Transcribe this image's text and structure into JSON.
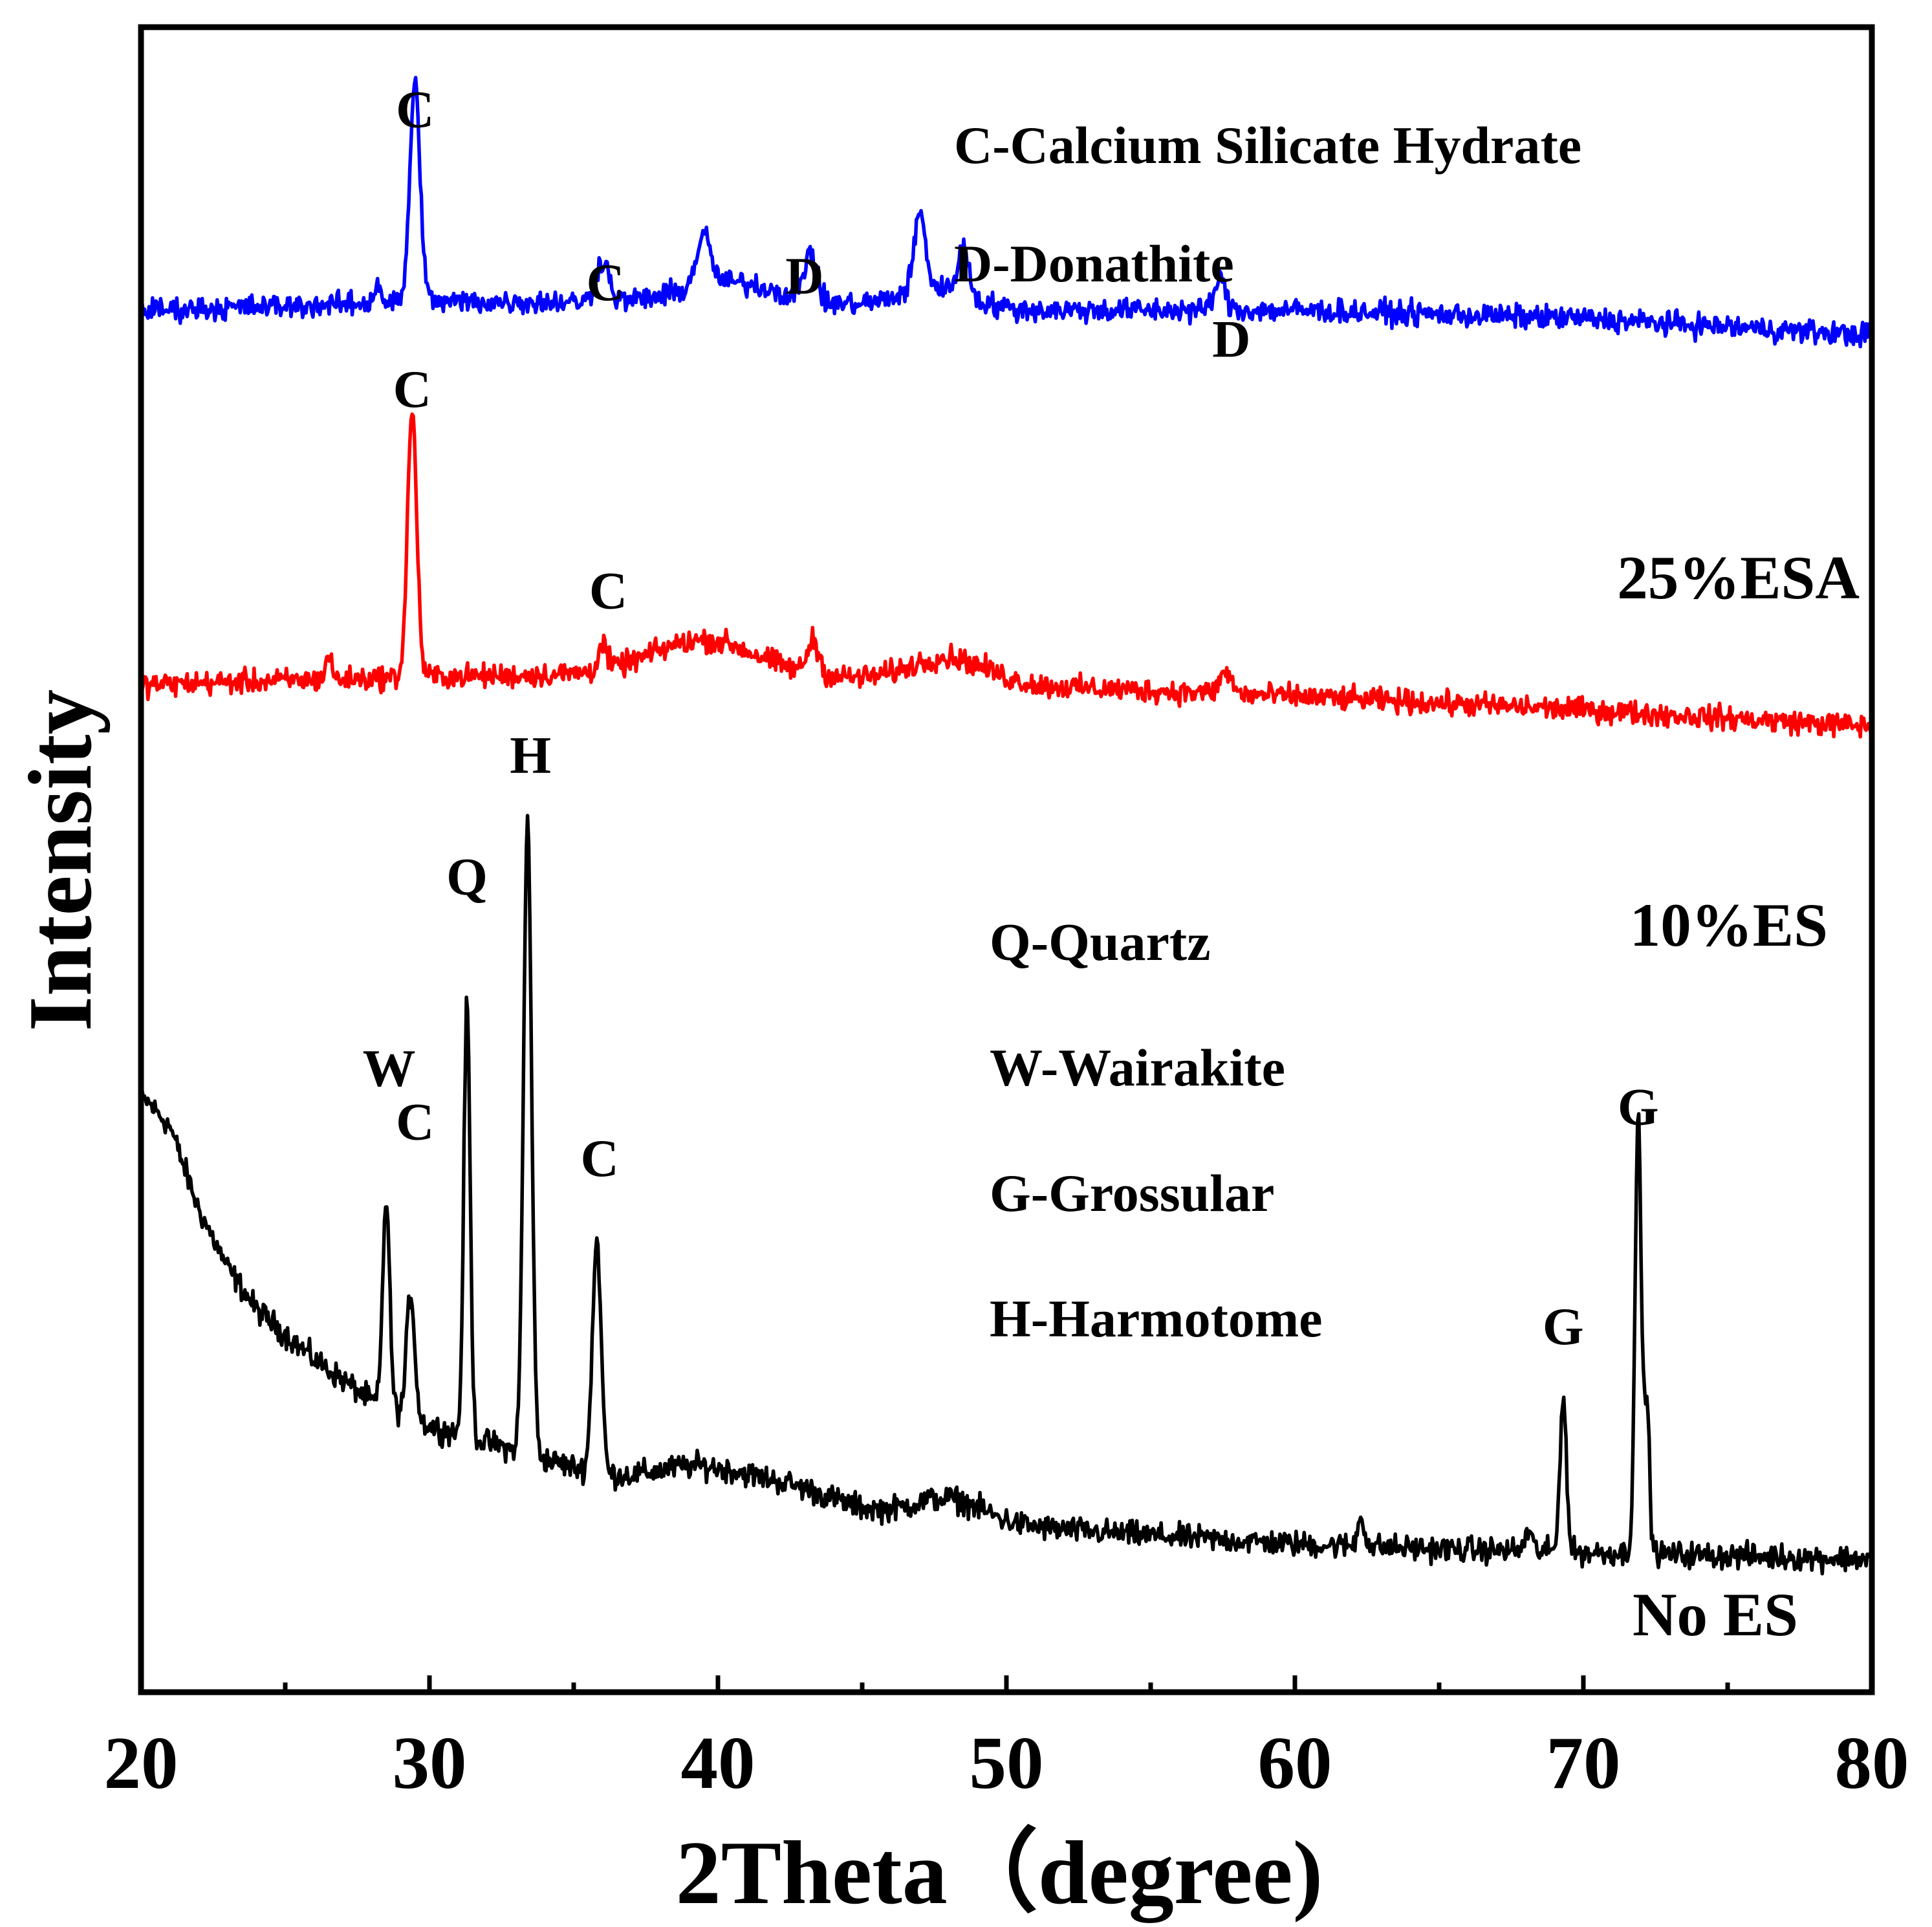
{
  "chart_data": {
    "type": "line",
    "title": "",
    "xlabel": "2Theta（degree)",
    "ylabel": "Intensity",
    "xlim": [
      20,
      80
    ],
    "xticks": [
      20,
      30,
      40,
      50,
      60,
      70,
      80
    ],
    "xtick_labels": [
      "20",
      "30",
      "40",
      "50",
      "60",
      "70",
      "80"
    ],
    "yticks": [],
    "grid": false,
    "series": [
      {
        "name": "No ES",
        "color": "#000000",
        "baseline": [
          [
            20.2,
            35.5
          ],
          [
            21,
            34
          ],
          [
            22,
            29
          ],
          [
            23,
            25.5
          ],
          [
            24,
            23
          ],
          [
            26,
            20
          ],
          [
            28,
            17.5
          ],
          [
            30,
            16
          ],
          [
            32,
            15
          ],
          [
            34,
            14
          ],
          [
            36,
            13
          ],
          [
            40,
            11.8
          ],
          [
            45,
            10.8
          ],
          [
            50,
            10
          ],
          [
            55,
            9.4
          ],
          [
            60,
            8.9
          ],
          [
            65,
            8.6
          ],
          [
            70,
            8.4
          ],
          [
            75,
            8.2
          ],
          [
            80,
            8.0
          ]
        ],
        "peaks": [
          {
            "x": 28.5,
            "h": 12.5,
            "w": 0.12,
            "label": "W"
          },
          {
            "x": 29.35,
            "h": 7.5,
            "w": 0.14,
            "label": "C"
          },
          {
            "x": 31.3,
            "h": 26,
            "w": 0.11,
            "label": "Q"
          },
          {
            "x": 33.4,
            "h": 38,
            "w": 0.14,
            "label": "H"
          },
          {
            "x": 35.8,
            "h": 14,
            "w": 0.15,
            "label": "C"
          },
          {
            "x": 62.3,
            "h": 1.8,
            "w": 0.12,
            "label": ""
          },
          {
            "x": 68.1,
            "h": 1.2,
            "w": 0.12,
            "label": ""
          },
          {
            "x": 69.3,
            "h": 9.5,
            "w": 0.11,
            "label": "G"
          },
          {
            "x": 71.9,
            "h": 26,
            "w": 0.11,
            "label": "G"
          },
          {
            "x": 72.2,
            "h": 9,
            "w": 0.09,
            "label": ""
          }
        ],
        "humps": [
          {
            "x": 39.5,
            "h": 1.5,
            "w": 1.5
          },
          {
            "x": 42.5,
            "h": 1.0,
            "w": 1.5
          },
          {
            "x": 48,
            "h": 1.3,
            "w": 1.2
          }
        ]
      },
      {
        "name": "10%ES",
        "color": "#ff0000",
        "baseline": [
          [
            20,
            60.5
          ],
          [
            30,
            61.0
          ],
          [
            40,
            61.2
          ],
          [
            50,
            60.5
          ],
          [
            60,
            59.8
          ],
          [
            70,
            59.0
          ],
          [
            80,
            58.0
          ]
        ],
        "peaks": [
          {
            "x": 29.4,
            "h": 16,
            "w": 0.16,
            "label": "C"
          },
          {
            "x": 36.0,
            "h": 1.5,
            "w": 0.15,
            "label": "C"
          },
          {
            "x": 43.3,
            "h": 2.0,
            "w": 0.2,
            "label": ""
          },
          {
            "x": 57.6,
            "h": 1.3,
            "w": 0.2,
            "label": ""
          },
          {
            "x": 26.5,
            "h": 1.5,
            "w": 0.1,
            "label": ""
          }
        ],
        "humps": [
          {
            "x": 39.5,
            "h": 2.0,
            "w": 1.8
          },
          {
            "x": 48,
            "h": 1.5,
            "w": 1.3
          }
        ]
      },
      {
        "name": "25%ESA",
        "color": "#0000ff",
        "baseline": [
          [
            20,
            83
          ],
          [
            30,
            83.5
          ],
          [
            40,
            83.5
          ],
          [
            50,
            83
          ],
          [
            60,
            83
          ],
          [
            70,
            82.5
          ],
          [
            80,
            81.5
          ]
        ],
        "peaks": [
          {
            "x": 29.5,
            "h": 13,
            "w": 0.18,
            "label": "C"
          },
          {
            "x": 36.0,
            "h": 2.5,
            "w": 0.22,
            "label": "C"
          },
          {
            "x": 39.5,
            "h": 3.0,
            "w": 0.25,
            "label": ""
          },
          {
            "x": 43.2,
            "h": 3.0,
            "w": 0.2,
            "label": "D"
          },
          {
            "x": 47.0,
            "h": 4.5,
            "w": 0.2,
            "label": ""
          },
          {
            "x": 48.5,
            "h": 2.8,
            "w": 0.2,
            "label": ""
          },
          {
            "x": 57.4,
            "h": 1.8,
            "w": 0.2,
            "label": "D"
          },
          {
            "x": 28.2,
            "h": 1.2,
            "w": 0.12,
            "label": ""
          }
        ],
        "humps": [
          {
            "x": 40.5,
            "h": 1.2,
            "w": 1.6
          },
          {
            "x": 47.5,
            "h": 1.2,
            "w": 1.2
          }
        ]
      }
    ],
    "peak_labels": [
      {
        "text": "C",
        "x": 29.5,
        "y": 94.0
      },
      {
        "text": "C",
        "x": 36.1,
        "y": 83.6
      },
      {
        "text": "D",
        "x": 43.0,
        "y": 84.0
      },
      {
        "text": "D",
        "x": 57.8,
        "y": 80.2
      },
      {
        "text": "C",
        "x": 29.4,
        "y": 77.2
      },
      {
        "text": "C",
        "x": 36.2,
        "y": 65.1
      },
      {
        "text": "H",
        "x": 33.5,
        "y": 55.2
      },
      {
        "text": "Q",
        "x": 31.3,
        "y": 47.9
      },
      {
        "text": "W",
        "x": 28.6,
        "y": 36.4
      },
      {
        "text": "C",
        "x": 29.5,
        "y": 33.2
      },
      {
        "text": "C",
        "x": 35.9,
        "y": 31.0
      },
      {
        "text": "G",
        "x": 71.9,
        "y": 34.1
      },
      {
        "text": "G",
        "x": 69.3,
        "y": 20.9
      }
    ],
    "legend_upper": [
      "C-Calcium Silicate Hydrate",
      "D-Donathite"
    ],
    "legend_lower": [
      "Q-Quartz",
      "W-Wairakite",
      "G-Grossular",
      "H-Harmotome"
    ],
    "series_labels": [
      {
        "text": "25%ESA",
        "color": "#0000ff"
      },
      {
        "text": "10%ES",
        "color": "#ff0000"
      },
      {
        "text": "No ES",
        "color": "#000000"
      }
    ]
  }
}
